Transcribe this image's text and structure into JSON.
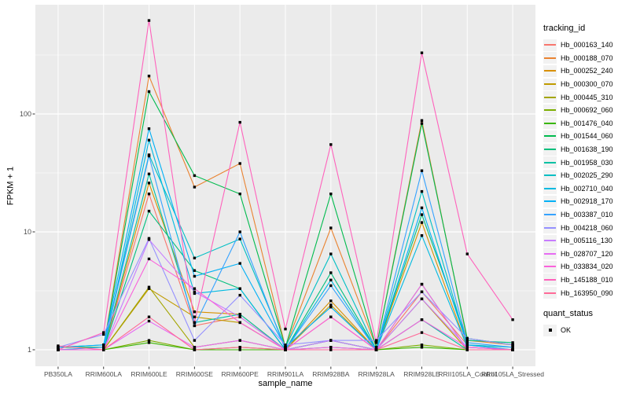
{
  "axes": {
    "x_title": "sample_name",
    "y_title": "FPKM + 1"
  },
  "legend": {
    "tracking_title": "tracking_id",
    "quant_title": "quant_status",
    "quant_ok_label": "OK"
  },
  "style": {
    "panel_bg": "#EBEBEB",
    "grid_color": "#FFFFFF",
    "tick_label_color": "#4D4D4D",
    "marker_color": "#000000"
  },
  "chart_data": {
    "type": "line",
    "xlabel": "sample_name",
    "ylabel": "FPKM + 1",
    "y_scale": "log10",
    "ylim": [
      1,
      1000
    ],
    "y_ticks": [
      1,
      10,
      100
    ],
    "y_tick_labels": [
      "1",
      "10",
      "100"
    ],
    "grid": true,
    "legend_position": "right",
    "marker": {
      "shape": "square",
      "color": "#000000",
      "meaning": "quant_status OK"
    },
    "categories": [
      "PB350LA",
      "RRIM600LA",
      "RRIM600LE",
      "RRIM600SE",
      "RRIM600PE",
      "RRIM901LA",
      "RRIM928BA",
      "RRIM928LA",
      "RRIM928LE",
      "RRII105LA_Control",
      "RRII105LA_Stressed"
    ],
    "series": [
      {
        "name": "Hb_000163_140",
        "color": "#F8766D",
        "values": [
          1.0,
          1.0,
          21,
          1.6,
          1.9,
          1.0,
          1.9,
          1.0,
          3.1,
          1.1,
          1.0
        ]
      },
      {
        "name": "Hb_000188_070",
        "color": "#EA8331",
        "values": [
          1.0,
          1.05,
          210,
          24,
          38,
          1.05,
          10.8,
          1.05,
          88,
          1.2,
          1.1
        ]
      },
      {
        "name": "Hb_000252_240",
        "color": "#D89000",
        "values": [
          1.0,
          1.0,
          26,
          2.1,
          2.0,
          1.0,
          2.6,
          1.0,
          12,
          1.05,
          1.0
        ]
      },
      {
        "name": "Hb_000300_070",
        "color": "#C09B00",
        "values": [
          1.0,
          1.0,
          3.3,
          1.9,
          1.7,
          1.0,
          2.4,
          1.0,
          2.7,
          1.0,
          1.0
        ]
      },
      {
        "name": "Hb_000445_310",
        "color": "#A3A500",
        "values": [
          1.0,
          1.0,
          3.4,
          1.05,
          1.2,
          1.0,
          1.2,
          1.0,
          3.6,
          1.0,
          1.0
        ]
      },
      {
        "name": "Hb_000692_060",
        "color": "#7CAE00",
        "values": [
          1.0,
          1.0,
          1.2,
          1.0,
          1.05,
          1.0,
          1.05,
          1.0,
          1.1,
          1.0,
          1.0
        ]
      },
      {
        "name": "Hb_001476_040",
        "color": "#39B600",
        "values": [
          1.0,
          1.0,
          1.15,
          1.0,
          1.0,
          1.0,
          1.0,
          1.0,
          1.05,
          1.0,
          1.0
        ]
      },
      {
        "name": "Hb_001544_060",
        "color": "#00BB4E",
        "values": [
          1.05,
          1.05,
          155,
          30,
          21,
          1.05,
          21,
          1.05,
          83,
          1.25,
          1.1
        ]
      },
      {
        "name": "Hb_001638_190",
        "color": "#00BF7D",
        "values": [
          1.0,
          1.0,
          15,
          4.7,
          3.3,
          1.0,
          4.5,
          1.0,
          14,
          1.2,
          1.15
        ]
      },
      {
        "name": "Hb_001958_030",
        "color": "#00C1A3",
        "values": [
          1.0,
          1.0,
          31,
          1.7,
          2.0,
          1.0,
          1.2,
          1.0,
          1.8,
          1.0,
          1.0
        ]
      },
      {
        "name": "Hb_002025_290",
        "color": "#00BFC4",
        "values": [
          1.05,
          1.1,
          45,
          6.0,
          8.7,
          1.05,
          6.5,
          1.0,
          22,
          1.1,
          1.05
        ]
      },
      {
        "name": "Hb_002710_040",
        "color": "#00BAE0",
        "values": [
          1.0,
          1.0,
          60,
          3.0,
          3.3,
          1.0,
          3.9,
          1.0,
          9.3,
          1.05,
          1.0
        ]
      },
      {
        "name": "Hb_002918_170",
        "color": "#00B0F6",
        "values": [
          1.05,
          1.1,
          75,
          4.2,
          5.4,
          1.05,
          2.3,
          1.0,
          16,
          1.1,
          1.0
        ]
      },
      {
        "name": "Hb_003387_010",
        "color": "#35A2FF",
        "values": [
          1.0,
          1.05,
          44,
          1.6,
          10,
          1.0,
          3.5,
          1.0,
          33,
          1.15,
          1.05
        ]
      },
      {
        "name": "Hb_004218_060",
        "color": "#9590FF",
        "values": [
          1.05,
          1.35,
          8.8,
          1.2,
          2.9,
          1.1,
          1.2,
          1.2,
          3.1,
          1.25,
          1.1
        ]
      },
      {
        "name": "Hb_005116_130",
        "color": "#C77CFF",
        "values": [
          1.0,
          1.0,
          8.6,
          3.1,
          1.9,
          1.0,
          1.2,
          1.0,
          2.7,
          1.05,
          1.0
        ]
      },
      {
        "name": "Hb_028707_120",
        "color": "#E76BF3",
        "values": [
          1.0,
          1.0,
          1.75,
          1.05,
          1.2,
          1.0,
          1.05,
          1.0,
          3.6,
          1.0,
          1.0
        ]
      },
      {
        "name": "Hb_033834_020",
        "color": "#FA62DB",
        "values": [
          1.0,
          1.0,
          5.9,
          3.3,
          1.7,
          1.0,
          1.9,
          1.0,
          1.8,
          1.05,
          1.0
        ]
      },
      {
        "name": "Hb_145188_010",
        "color": "#FF62BC",
        "values": [
          1.0,
          1.4,
          620,
          1.7,
          85,
          1.5,
          55,
          1.15,
          330,
          6.5,
          1.8
        ]
      },
      {
        "name": "Hb_163950_090",
        "color": "#FF6A98",
        "values": [
          1.08,
          1.0,
          1.9,
          1.0,
          1.05,
          1.0,
          1.0,
          1.0,
          1.4,
          1.0,
          1.0
        ]
      }
    ]
  }
}
